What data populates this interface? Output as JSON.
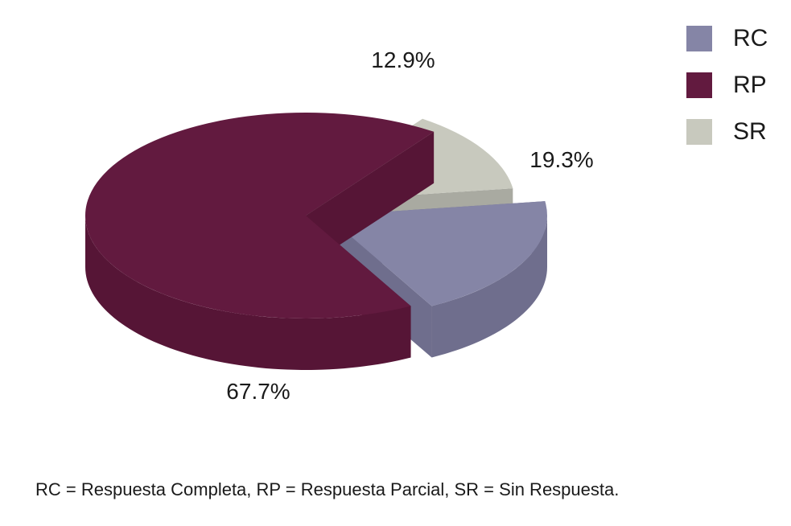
{
  "chart_data": {
    "type": "pie",
    "style": "3d-exploded",
    "slices": [
      {
        "name": "RC",
        "value": 19.3,
        "label": "19.3%",
        "color": "#8585a6",
        "side_color": "#6f6e8d"
      },
      {
        "name": "RP",
        "value": 67.7,
        "label": "67.7%",
        "color": "#621a3f",
        "side_color": "#561536"
      },
      {
        "name": "SR",
        "value": 12.9,
        "label": "12.9%",
        "color": "#c8c9be",
        "side_color": "#a9aaa1"
      }
    ],
    "legend": {
      "placement": "top-right",
      "items": [
        {
          "label": "RC",
          "color": "#8585a6"
        },
        {
          "label": "RP",
          "color": "#621a3f"
        },
        {
          "label": "SR",
          "color": "#c8c9be"
        }
      ]
    }
  },
  "footnote": "RC = Respuesta Completa, RP = Respuesta Parcial, SR = Sin Respuesta."
}
